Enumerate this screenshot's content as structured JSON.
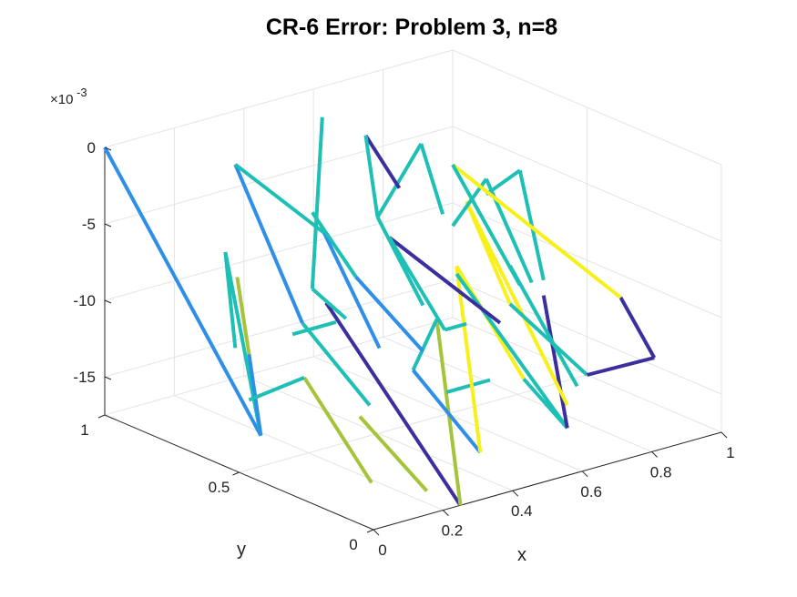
{
  "chart_data": {
    "type": "line",
    "title": "CR-6 Error: Problem 3, n=8",
    "xlabel": "x",
    "ylabel": "y",
    "zlabel": "",
    "x_ticks": [
      "0",
      "0.2",
      "0.4",
      "0.6",
      "0.8",
      "1"
    ],
    "y_ticks": [
      "0",
      "0.5",
      "1"
    ],
    "z_ticks": [
      "0",
      "-5",
      "-10",
      "-15"
    ],
    "z_exponent_prefix": "×10",
    "z_exponent": "-3",
    "xlim": [
      0,
      1
    ],
    "ylim": [
      0,
      1
    ],
    "zlim": [
      -0.0175,
      0
    ],
    "grid": true,
    "colors": {
      "dark": "#3b2f9e",
      "blue": "#2f8fe8",
      "teal": "#1ebfb5",
      "olive": "#a5c43c",
      "yellow": "#f7f01a"
    },
    "segments": [
      {
        "color": "blue",
        "points": [
          [
            0,
            1,
            0
          ],
          [
            0.0625,
            0.5,
            -0.0155
          ]
        ]
      },
      {
        "color": "teal",
        "points": [
          [
            0.0625,
            0.5,
            -0.0155
          ],
          [
            0.25,
            0.875,
            -0.0075
          ]
        ]
      },
      {
        "color": "teal",
        "points": [
          [
            0.25,
            0.875,
            -0.0075
          ],
          [
            0.375,
            1,
            -0.0155
          ]
        ]
      },
      {
        "color": "blue",
        "points": [
          [
            0.0625,
            0.5,
            -0.0155
          ],
          [
            0.125,
            0.625,
            -0.0115
          ]
        ]
      },
      {
        "color": "olive",
        "points": [
          [
            0.125,
            0.625,
            -0.0115
          ],
          [
            0.1875,
            0.75,
            -0.0078
          ]
        ]
      },
      {
        "color": "olive",
        "points": [
          [
            0.1875,
            0.5,
            -0.0125
          ],
          [
            0.1875,
            0.25,
            -0.0175
          ]
        ]
      },
      {
        "color": "teal",
        "points": [
          [
            0.1875,
            0.5,
            -0.0125
          ],
          [
            0.125,
            0.625,
            -0.0145
          ]
        ]
      },
      {
        "color": "olive",
        "points": [
          [
            0.25,
            0.375,
            -0.0145
          ],
          [
            0.25,
            0.125,
            -0.0175
          ]
        ]
      },
      {
        "color": "dark",
        "points": [
          [
            0.25,
            0.5,
            -0.008
          ],
          [
            0.25,
            0.0,
            -0.0175
          ]
        ]
      },
      {
        "color": "olive",
        "points": [
          [
            0.25,
            0.0,
            -0.0175
          ],
          [
            0.375,
            0.25,
            -0.008
          ]
        ]
      },
      {
        "color": "teal",
        "points": [
          [
            0.375,
            0.25,
            -0.008
          ],
          [
            0.5,
            0.5,
            -0.014
          ]
        ]
      },
      {
        "color": "blue",
        "points": [
          [
            0.5,
            0.5,
            -0.014
          ],
          [
            0.5,
            0.25,
            -0.0175
          ]
        ]
      },
      {
        "color": "teal",
        "points": [
          [
            0.25,
            0.625,
            -0.011
          ],
          [
            0.375,
            0.625,
            -0.011
          ]
        ]
      },
      {
        "color": "teal",
        "points": [
          [
            0.375,
            0.75,
            -0.012
          ],
          [
            0.375,
            0.5,
            -0.0155
          ]
        ]
      },
      {
        "color": "blue",
        "points": [
          [
            0.375,
            0.75,
            -0.012
          ],
          [
            0.375,
            1,
            -0.0035
          ]
        ]
      },
      {
        "color": "teal",
        "points": [
          [
            0.375,
            1,
            -0.0035
          ],
          [
            0.4375,
            0.75,
            -0.0065
          ]
        ]
      },
      {
        "color": "blue",
        "points": [
          [
            0.4375,
            0.75,
            -0.0065
          ],
          [
            0.5,
            0.625,
            -0.0135
          ]
        ]
      },
      {
        "color": "teal",
        "points": [
          [
            0.5,
            0.875,
            -0.0115
          ],
          [
            0.5,
            0.75,
            -0.0125
          ]
        ]
      },
      {
        "color": "teal",
        "points": [
          [
            0.5,
            0.875,
            -0.0115
          ],
          [
            0.625,
            1,
            -0.002
          ]
        ]
      },
      {
        "color": "teal",
        "points": [
          [
            0.5,
            0.875,
            -0.0065
          ],
          [
            0.625,
            0.875,
            -0.0115
          ]
        ]
      },
      {
        "color": "blue",
        "points": [
          [
            0.625,
            0.875,
            -0.0115
          ],
          [
            0.625,
            0.625,
            -0.0145
          ]
        ]
      },
      {
        "color": "teal",
        "points": [
          [
            0.5,
            0.375,
            -0.0145
          ],
          [
            0.625,
            0.375,
            -0.0145
          ]
        ]
      },
      {
        "color": "yellow",
        "points": [
          [
            0.5,
            0.25,
            -0.0175
          ],
          [
            0.625,
            0.5,
            -0.008
          ]
        ]
      },
      {
        "color": "yellow",
        "points": [
          [
            0.625,
            0.5,
            -0.008
          ],
          [
            0.625,
            0.25,
            -0.0135
          ]
        ]
      },
      {
        "color": "teal",
        "points": [
          [
            0.625,
            0.25,
            -0.0135
          ],
          [
            0.75,
            0.25,
            -0.0175
          ]
        ]
      },
      {
        "color": "teal",
        "points": [
          [
            0.75,
            0.25,
            -0.0175
          ],
          [
            0.625,
            0.5,
            -0.0085
          ]
        ]
      },
      {
        "color": "dark",
        "points": [
          [
            0.75,
            0.5,
            -0.0125
          ],
          [
            0.625,
            0.75,
            -0.008
          ]
        ]
      },
      {
        "color": "teal",
        "points": [
          [
            0.625,
            0.75,
            -0.008
          ],
          [
            0.6875,
            0.625,
            -0.0135
          ]
        ]
      },
      {
        "color": "teal",
        "points": [
          [
            0.6875,
            0.625,
            -0.0135
          ],
          [
            0.75,
            0.625,
            -0.0135
          ]
        ]
      },
      {
        "color": "teal",
        "points": [
          [
            0.625,
            0.625,
            -0.0115
          ],
          [
            0.6875,
            0.875,
            -0.008
          ]
        ]
      },
      {
        "color": "teal",
        "points": [
          [
            0.6875,
            0.875,
            -0.008
          ],
          [
            0.8125,
            0.875,
            -0.004
          ]
        ]
      },
      {
        "color": "teal",
        "points": [
          [
            0.8125,
            0.875,
            -0.004
          ],
          [
            0.875,
            0.875,
            -0.009
          ]
        ]
      },
      {
        "color": "dark",
        "points": [
          [
            0.75,
            1,
            -0.004
          ],
          [
            0.75,
            0.875,
            -0.0065
          ]
        ]
      },
      {
        "color": "teal",
        "points": [
          [
            0.75,
            1,
            -0.004
          ],
          [
            0.6875,
            0.875,
            -0.008
          ]
        ]
      },
      {
        "color": "dark",
        "points": [
          [
            0.75,
            0.25,
            -0.0175
          ],
          [
            0.875,
            0.5,
            -0.0115
          ]
        ]
      },
      {
        "color": "teal",
        "points": [
          [
            0.875,
            0.625,
            -0.0105
          ],
          [
            0.875,
            0.375,
            -0.0165
          ]
        ]
      },
      {
        "color": "yellow",
        "points": [
          [
            0.75,
            0.625,
            -0.0055
          ],
          [
            0.75,
            0.25,
            -0.016
          ]
        ]
      },
      {
        "color": "yellow",
        "points": [
          [
            0.75,
            0.625,
            -0.0055
          ],
          [
            0.875,
            0.625,
            -0.013
          ]
        ]
      },
      {
        "color": "teal",
        "points": [
          [
            0.875,
            0.625,
            -0.013
          ],
          [
            1.0,
            0.5,
            -0.0175
          ]
        ]
      },
      {
        "color": "dark",
        "points": [
          [
            1.0,
            0.5,
            -0.0175
          ],
          [
            1.0,
            0.25,
            -0.0145
          ]
        ]
      },
      {
        "color": "teal",
        "points": [
          [
            0.875,
            0.5,
            -0.0105
          ],
          [
            1.0,
            0.75,
            -0.006
          ]
        ]
      },
      {
        "color": "teal",
        "points": [
          [
            1.0,
            0.75,
            -0.006
          ],
          [
            1.0,
            0.875,
            -0.0085
          ]
        ]
      },
      {
        "color": "teal",
        "points": [
          [
            0.9375,
            0.625,
            -0.012
          ],
          [
            1.0,
            0.875,
            -0.0075
          ]
        ]
      },
      {
        "color": "teal",
        "points": [
          [
            1.0,
            0.875,
            -0.0075
          ],
          [
            1.0,
            1.0,
            -0.0115
          ]
        ]
      },
      {
        "color": "dark",
        "points": [
          [
            1.0,
            0.25,
            -0.0145
          ],
          [
            1.0,
            0.375,
            -0.0115
          ]
        ]
      },
      {
        "color": "yellow",
        "points": [
          [
            1.0,
            0.375,
            -0.0115
          ],
          [
            1.0,
            1.0,
            -0.0075
          ]
        ]
      },
      {
        "color": "teal",
        "points": [
          [
            1.0,
            1.0,
            -0.0075
          ],
          [
            1.0,
            0.75,
            -0.0135
          ]
        ]
      }
    ]
  }
}
